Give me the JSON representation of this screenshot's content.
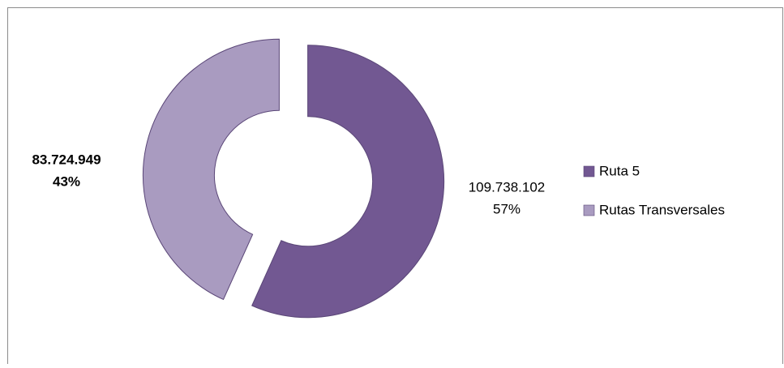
{
  "chart_data": {
    "type": "donut",
    "categories": [
      "Ruta 5",
      "Rutas Transversales"
    ],
    "values": [
      109738102,
      83724949
    ],
    "value_labels": [
      "109.738.102",
      "83.724.949"
    ],
    "percentages": [
      57,
      43
    ],
    "percentage_labels": [
      "57%",
      "43%"
    ],
    "colors": [
      "#725892",
      "#a99bc0"
    ],
    "legend": "right"
  }
}
